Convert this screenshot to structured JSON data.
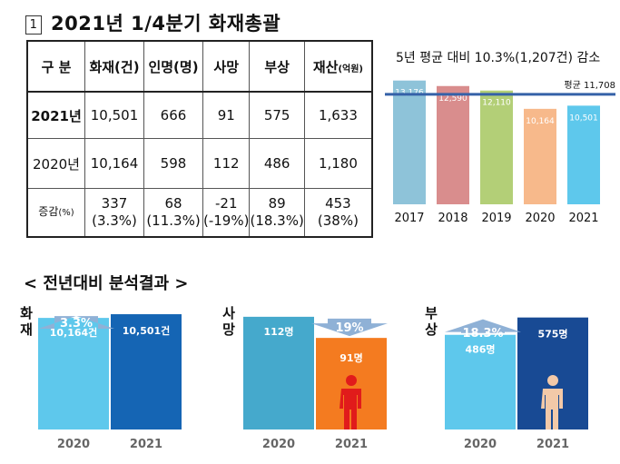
{
  "title": {
    "box": "1",
    "text": "2021년 1/4분기 화재총괄"
  },
  "table": {
    "headers": [
      "구  분",
      "화재(건)",
      "인명(명)",
      "사망",
      "부상",
      "재산",
      "(억원)"
    ],
    "rows": [
      {
        "label": "2021년",
        "cells": [
          "10,501",
          "666",
          "91",
          "575",
          "1,633"
        ]
      },
      {
        "label": "2020년",
        "cells": [
          "10,164",
          "598",
          "112",
          "486",
          "1,180"
        ]
      },
      {
        "label": "증감",
        "label_unit": "(%)",
        "cells": [
          [
            "337",
            "(3.3%)"
          ],
          [
            "68",
            "(11.3%)"
          ],
          [
            "-21",
            "(-19%)"
          ],
          [
            "89",
            "(18.3%)"
          ],
          [
            "453",
            "(38%)"
          ]
        ]
      }
    ]
  },
  "section_title": "< 전년대비 분석결과 >",
  "chart_data": [
    {
      "type": "bar",
      "title": "5년 평균 대비 10.3%(1,207건) 감소",
      "categories": [
        "2017",
        "2018",
        "2019",
        "2020",
        "2021"
      ],
      "values": [
        13176,
        12590,
        12110,
        10164,
        10501
      ],
      "value_labels": [
        "13,176",
        "12,590",
        "12,110",
        "10,164",
        "10,501"
      ],
      "colors": [
        "#8ec3d9",
        "#d98d8d",
        "#b3cf77",
        "#f7b98b",
        "#5ec8ec"
      ],
      "average": 11708,
      "average_label": "평균 11,708",
      "ylim": [
        0,
        14500
      ]
    },
    {
      "type": "bar",
      "label": "화재",
      "categories": [
        "2020",
        "2021"
      ],
      "values": [
        10164,
        10501
      ],
      "value_labels": [
        "10,164건",
        "10,501건"
      ],
      "colors": [
        "#5ec8ec",
        "#1565b4"
      ],
      "change_label": "3.3%",
      "change_direction": "up",
      "ylim": [
        0,
        11000
      ]
    },
    {
      "type": "bar",
      "label": "사망",
      "categories": [
        "2020",
        "2021"
      ],
      "values": [
        112,
        91
      ],
      "value_labels": [
        "112명",
        "91명"
      ],
      "colors": [
        "#45a9cc",
        "#f47b20"
      ],
      "change_label": "19%",
      "change_direction": "down",
      "ylim": [
        0,
        120
      ]
    },
    {
      "type": "bar",
      "label": "부상",
      "categories": [
        "2020",
        "2021"
      ],
      "values": [
        486,
        575
      ],
      "value_labels": [
        "486명",
        "575명"
      ],
      "colors": [
        "#5ec8ec",
        "#184a94"
      ],
      "change_label": "18.3%",
      "change_direction": "up",
      "ylim": [
        0,
        620
      ]
    }
  ],
  "colors": {
    "arrow": "#8fb1d6",
    "average_line": "#3561a8",
    "figure_red": "#e11b1b",
    "figure_skin": "#f3c9a8"
  }
}
